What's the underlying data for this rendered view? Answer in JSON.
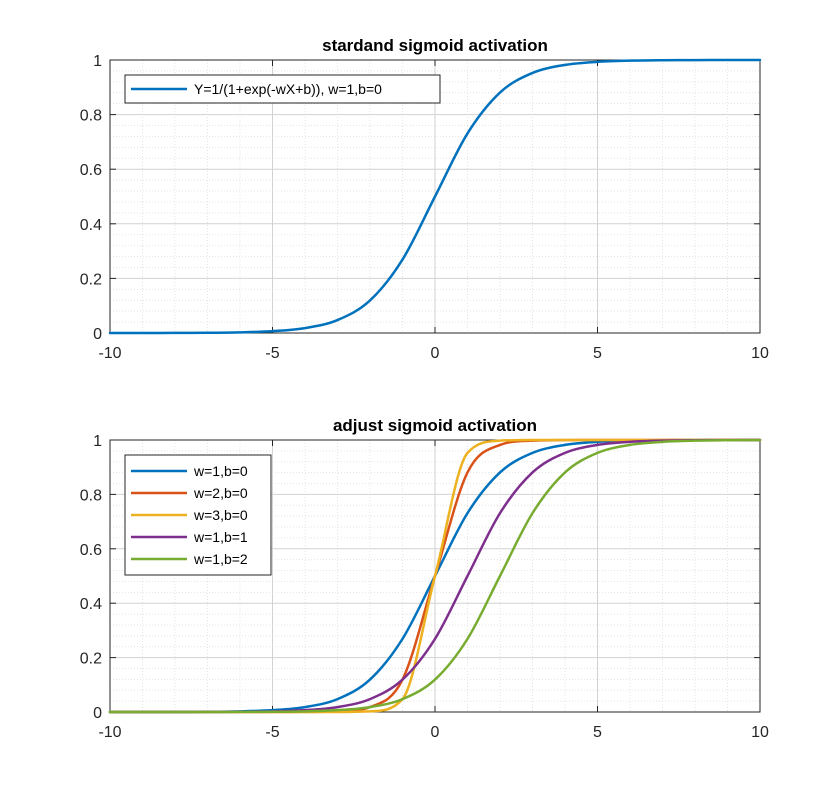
{
  "chart_data": [
    {
      "type": "line",
      "title": "stardand sigmoid activation",
      "xlabel": "",
      "ylabel": "",
      "xlim": [
        -10,
        10
      ],
      "ylim": [
        0,
        1
      ],
      "xticks": [
        -10,
        -5,
        0,
        5,
        10
      ],
      "yticks": [
        0,
        0.2,
        0.4,
        0.6,
        0.8,
        1
      ],
      "grid": true,
      "minor_grid": true,
      "legend_position": "top-left",
      "x": [
        -10,
        -9,
        -8,
        -7,
        -6,
        -5,
        -4,
        -3,
        -2,
        -1,
        0,
        1,
        2,
        3,
        4,
        5,
        6,
        7,
        8,
        9,
        10
      ],
      "series": [
        {
          "name": "Y=1/(1+exp(-wX+b)), w=1,b=0",
          "color": "#0072BD",
          "values": [
            0.0,
            0.0001,
            0.0003,
            0.0009,
            0.0025,
            0.0067,
            0.018,
            0.0474,
            0.1192,
            0.2689,
            0.5,
            0.7311,
            0.8808,
            0.9526,
            0.982,
            0.9933,
            0.9975,
            0.9991,
            0.9997,
            0.9999,
            1.0
          ]
        }
      ]
    },
    {
      "type": "line",
      "title": "adjust sigmoid activation",
      "xlabel": "",
      "ylabel": "",
      "xlim": [
        -10,
        10
      ],
      "ylim": [
        0,
        1
      ],
      "xticks": [
        -10,
        -5,
        0,
        5,
        10
      ],
      "yticks": [
        0,
        0.2,
        0.4,
        0.6,
        0.8,
        1
      ],
      "grid": true,
      "minor_grid": true,
      "legend_position": "top-left",
      "x": [
        -10,
        -9,
        -8,
        -7,
        -6,
        -5,
        -4,
        -3,
        -2,
        -1,
        0,
        1,
        2,
        3,
        4,
        5,
        6,
        7,
        8,
        9,
        10
      ],
      "series": [
        {
          "name": "w=1,b=0",
          "color": "#0072BD",
          "values": [
            0.0,
            0.0001,
            0.0003,
            0.0009,
            0.0025,
            0.0067,
            0.018,
            0.0474,
            0.1192,
            0.2689,
            0.5,
            0.7311,
            0.8808,
            0.9526,
            0.982,
            0.9933,
            0.9975,
            0.9991,
            0.9997,
            0.9999,
            1.0
          ]
        },
        {
          "name": "w=2,b=0",
          "color": "#D95319",
          "values": [
            0.0,
            0.0,
            0.0,
            0.0,
            0.0,
            0.0,
            0.0003,
            0.0025,
            0.018,
            0.1192,
            0.5,
            0.8808,
            0.982,
            0.9975,
            0.9997,
            1.0,
            1.0,
            1.0,
            1.0,
            1.0,
            1.0
          ]
        },
        {
          "name": "w=3,b=0",
          "color": "#EDB120",
          "values": [
            0.0,
            0.0,
            0.0,
            0.0,
            0.0,
            0.0,
            0.0,
            0.0001,
            0.0025,
            0.0474,
            0.5,
            0.9526,
            0.9975,
            0.9999,
            1.0,
            1.0,
            1.0,
            1.0,
            1.0,
            1.0,
            1.0
          ]
        },
        {
          "name": "w=1,b=1",
          "color": "#7E2F8E",
          "values": [
            0.0,
            0.0,
            0.0001,
            0.0003,
            0.0009,
            0.0025,
            0.0067,
            0.018,
            0.0474,
            0.1192,
            0.2689,
            0.5,
            0.7311,
            0.8808,
            0.9526,
            0.982,
            0.9933,
            0.9975,
            0.9991,
            0.9997,
            0.9999
          ]
        },
        {
          "name": "w=1,b=2",
          "color": "#77AC30",
          "values": [
            0.0,
            0.0,
            0.0,
            0.0001,
            0.0003,
            0.0009,
            0.0025,
            0.0067,
            0.018,
            0.0474,
            0.1192,
            0.2689,
            0.5,
            0.7311,
            0.8808,
            0.9526,
            0.982,
            0.9933,
            0.9975,
            0.9991,
            0.9997
          ]
        }
      ]
    }
  ]
}
